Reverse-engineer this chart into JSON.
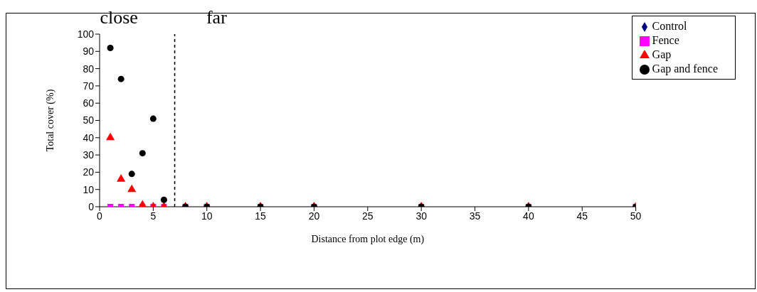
{
  "chart_data": {
    "type": "scatter",
    "xlabel": "Distance from plot edge (m)",
    "ylabel": "Total cover (%)",
    "annotations": [
      "close",
      "far"
    ],
    "x": [
      1,
      2,
      3,
      4,
      5,
      6,
      8,
      10,
      15,
      20,
      30,
      40,
      50
    ],
    "series": [
      {
        "name": "Control",
        "color": "#000080",
        "marker": "diamond",
        "values": [
          null,
          null,
          null,
          null,
          null,
          null,
          null,
          null,
          null,
          null,
          null,
          null,
          null
        ]
      },
      {
        "name": "Fence",
        "color": "#ff00ff",
        "marker": "square",
        "values": [
          0,
          0,
          0,
          0,
          0,
          0,
          0,
          0,
          0,
          0,
          0,
          0,
          0
        ]
      },
      {
        "name": "Gap",
        "color": "#ff0000",
        "marker": "triangle",
        "values": [
          40,
          16,
          10,
          1,
          0,
          0,
          0,
          0,
          0,
          0,
          0,
          0,
          0
        ]
      },
      {
        "name": "Gap and fence",
        "color": "#000000",
        "marker": "circle",
        "values": [
          92,
          74,
          19,
          31,
          51,
          4,
          0,
          0,
          0,
          0,
          0,
          0,
          0
        ]
      }
    ],
    "xlim": [
      0,
      50
    ],
    "xticks": [
      0,
      5,
      10,
      15,
      20,
      25,
      30,
      35,
      40,
      45,
      50
    ],
    "ylim": [
      0,
      100
    ],
    "yticks": [
      0,
      10,
      20,
      30,
      40,
      50,
      60,
      70,
      80,
      90,
      100
    ],
    "ref_lines": [
      {
        "axis": "x",
        "value": 7,
        "line_style": "dashed",
        "color": "#000000"
      }
    ],
    "grid": false,
    "legend": "top right"
  }
}
